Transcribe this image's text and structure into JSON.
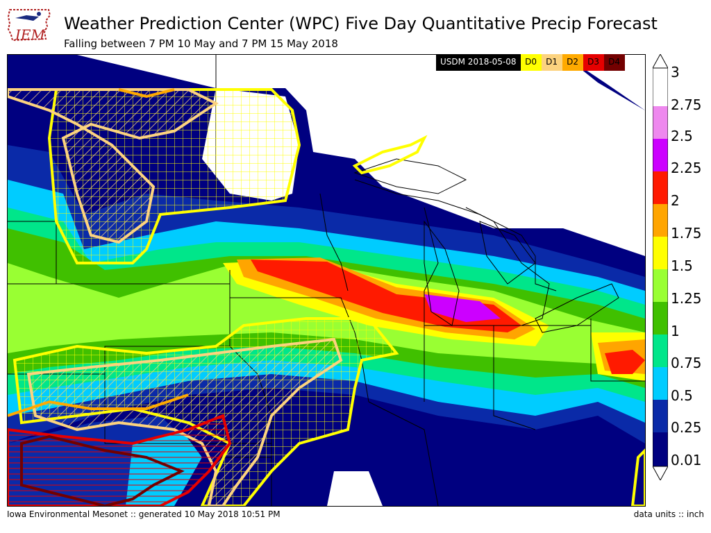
{
  "header": {
    "title": "Weather Prediction Center (WPC) Five Day Quantitative Precip Forecast",
    "subtitle": "Falling between 7 PM 10 May and 7 PM 15 May 2018"
  },
  "logo": {
    "text": "IEM",
    "icon": "iowa-state-outline-logo"
  },
  "drought_legend": {
    "label": "USDM 2018-05-08",
    "categories": [
      {
        "name": "D0",
        "color": "#ffff00",
        "text_color": "#000000"
      },
      {
        "name": "D1",
        "color": "#fcd37f",
        "text_color": "#000000"
      },
      {
        "name": "D2",
        "color": "#ffaa00",
        "text_color": "#000000"
      },
      {
        "name": "D3",
        "color": "#e60000",
        "text_color": "#000000"
      },
      {
        "name": "D4",
        "color": "#730000",
        "text_color": "#000000"
      }
    ]
  },
  "colorbar": {
    "units": "inch",
    "levels": [
      {
        "label": "0.01",
        "color": "#000080"
      },
      {
        "label": "0.25",
        "color": "#0a2aa8"
      },
      {
        "label": "0.5",
        "color": "#00ccff"
      },
      {
        "label": "0.75",
        "color": "#00e68a"
      },
      {
        "label": "1",
        "color": "#40c000"
      },
      {
        "label": "1.25",
        "color": "#99ff33"
      },
      {
        "label": "1.5",
        "color": "#ffff00"
      },
      {
        "label": "1.75",
        "color": "#ffa500"
      },
      {
        "label": "2",
        "color": "#ff1a00"
      },
      {
        "label": "2.25",
        "color": "#cc00ff"
      },
      {
        "label": "2.5",
        "color": "#ee88ee"
      },
      {
        "label": "2.75",
        "color": "#ffffff"
      },
      {
        "label": "3",
        "color": null
      }
    ]
  },
  "footer": {
    "left": "Iowa Environmental Mesonet :: generated 10 May 2018 10:51 PM",
    "right": "data units :: inch"
  }
}
